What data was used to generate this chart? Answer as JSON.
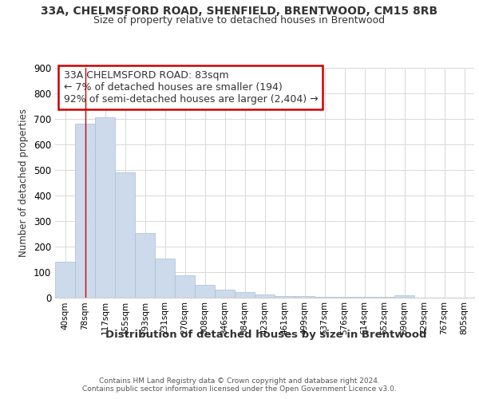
{
  "title1": "33A, CHELMSFORD ROAD, SHENFIELD, BRENTWOOD, CM15 8RB",
  "title2": "Size of property relative to detached houses in Brentwood",
  "xlabel": "Distribution of detached houses by size in Brentwood",
  "ylabel": "Number of detached properties",
  "footnote1": "Contains HM Land Registry data © Crown copyright and database right 2024.",
  "footnote2": "Contains public sector information licensed under the Open Government Licence v3.0.",
  "bar_labels": [
    "40sqm",
    "78sqm",
    "117sqm",
    "155sqm",
    "193sqm",
    "231sqm",
    "270sqm",
    "308sqm",
    "346sqm",
    "384sqm",
    "423sqm",
    "461sqm",
    "499sqm",
    "537sqm",
    "576sqm",
    "614sqm",
    "652sqm",
    "690sqm",
    "729sqm",
    "767sqm",
    "805sqm"
  ],
  "bar_values": [
    140,
    680,
    705,
    490,
    253,
    153,
    86,
    50,
    30,
    20,
    10,
    5,
    5,
    1,
    1,
    1,
    1,
    8,
    0,
    0,
    0
  ],
  "bar_color": "#ccdaeb",
  "bar_edge_color": "#aabfd8",
  "grid_color": "#d8d8d8",
  "vline_x": 1.0,
  "vline_color": "#cc0000",
  "annotation_line1": "33A CHELMSFORD ROAD: 83sqm",
  "annotation_line2": "← 7% of detached houses are smaller (194)",
  "annotation_line3": "92% of semi-detached houses are larger (2,404) →",
  "annotation_box_color": "#cc0000",
  "annotation_box_bg": "#ffffff",
  "ylim": [
    0,
    900
  ],
  "yticks": [
    0,
    100,
    200,
    300,
    400,
    500,
    600,
    700,
    800,
    900
  ],
  "background_color": "#ffffff"
}
